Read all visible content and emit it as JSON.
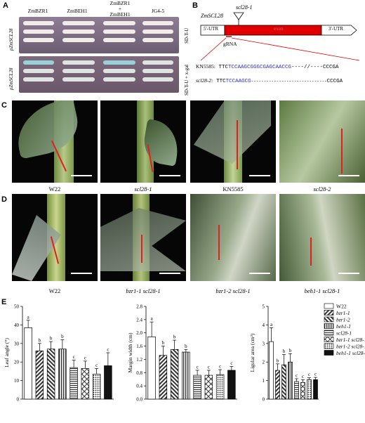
{
  "panels": {
    "A": {
      "letter": "A",
      "strains": [
        "ZmBZR1",
        "ZmBEH1",
        "ZmBZR1\n+\nZmBEH1",
        "JG4-5"
      ],
      "side_labels": [
        "pZmSCL28",
        "pZmSCL28"
      ],
      "row_conditions": [
        "SD-T-U",
        "SD-T-U + x-gal"
      ]
    },
    "B": {
      "letter": "B",
      "gene": "ZmSCL28",
      "allele": "scl28-1",
      "utr5": "5'-UTR",
      "exon": "exon",
      "utr3": "3'-UTR",
      "grna": "gRNA",
      "seq_rows": [
        {
          "label": "KN5585:",
          "prefix": "TTC",
          "blue": "TCCAAGCGGGCGAGCAACCG",
          "gap": "----//----",
          "suffix": "CCCGA"
        },
        {
          "label": "scl28-2:",
          "prefix": "TTC",
          "blue": "TCCAAGCG",
          "gap": "------------------------------",
          "suffix": "CCCGA"
        }
      ]
    },
    "C": {
      "letter": "C",
      "labels": [
        "W22",
        "scl28-1",
        "KN5585",
        "scl28-2"
      ]
    },
    "D": {
      "letter": "D",
      "labels": [
        "W22",
        "bzr1-1 scl28-1",
        "bzr1-2 scl28-1",
        "beh1-1 scl28-1"
      ]
    },
    "E": {
      "letter": "E"
    }
  },
  "chart_data": [
    {
      "type": "bar",
      "ylabel": "Leaf angle (°)",
      "ylim": [
        0,
        50
      ],
      "yticks": [
        0,
        10,
        20,
        30,
        40,
        50
      ],
      "categories": [
        "W22",
        "bzr1-1",
        "bzr1-2",
        "beh1-1",
        "scl28-1",
        "bzr1-1 scl28-1",
        "bzr1-2 scl28-1",
        "beh1-1 scl28-1"
      ],
      "values": [
        38.5,
        26,
        27,
        27,
        17,
        16.5,
        13.5,
        18
      ],
      "errors": [
        4,
        4,
        4,
        5,
        4,
        4,
        3,
        7
      ],
      "letters": [
        "a",
        "b",
        "b",
        "b",
        "c",
        "c",
        "c",
        "c"
      ]
    },
    {
      "type": "bar",
      "ylabel": "Margin width (cm)",
      "ylim": [
        0,
        2.8
      ],
      "yticks": [
        0.0,
        0.4,
        0.8,
        1.2,
        1.6,
        2.0,
        2.4,
        2.8
      ],
      "categories": [
        "W22",
        "bzr1-1",
        "bzr1-2",
        "beh1-1",
        "scl28-1",
        "bzr1-1 scl28-1",
        "bzr1-2 scl28-1",
        "beh1-1 scl28-1"
      ],
      "values": [
        1.88,
        1.32,
        1.5,
        1.42,
        0.72,
        0.72,
        0.74,
        0.87
      ],
      "errors": [
        0.45,
        0.28,
        0.28,
        0.08,
        0.15,
        0.15,
        0.15,
        0.12
      ],
      "letters": [
        "a",
        "b",
        "b",
        "b",
        "c",
        "c",
        "c",
        "c"
      ]
    },
    {
      "type": "bar",
      "ylabel": "Ligular area (cm²)",
      "ylim": [
        0,
        5
      ],
      "yticks": [
        0,
        1,
        2,
        3,
        4,
        5
      ],
      "categories": [
        "W22",
        "bzr1-1",
        "bzr1-2",
        "beh1-1",
        "scl28-1",
        "bzr1-1 scl28-1",
        "bzr1-2 scl28-1",
        "beh1-1 scl28-1"
      ],
      "values": [
        3.1,
        1.55,
        1.85,
        2.0,
        0.95,
        0.9,
        1.05,
        1.05
      ],
      "errors": [
        0.75,
        0.35,
        0.55,
        0.45,
        0.15,
        0.15,
        0.1,
        0.12
      ],
      "letters": [
        "a",
        "b",
        "b",
        "b",
        "c",
        "c",
        "c",
        "c"
      ],
      "legend": {
        "placement": "top-right",
        "entries": [
          "W22",
          "bzr1-1",
          "bzr1-2",
          "beh1-1",
          "scl28-1",
          "bzr1-1 scl28-1",
          "bzr1-2 scl28-1",
          "beh1-1 scl28-1"
        ]
      }
    }
  ]
}
